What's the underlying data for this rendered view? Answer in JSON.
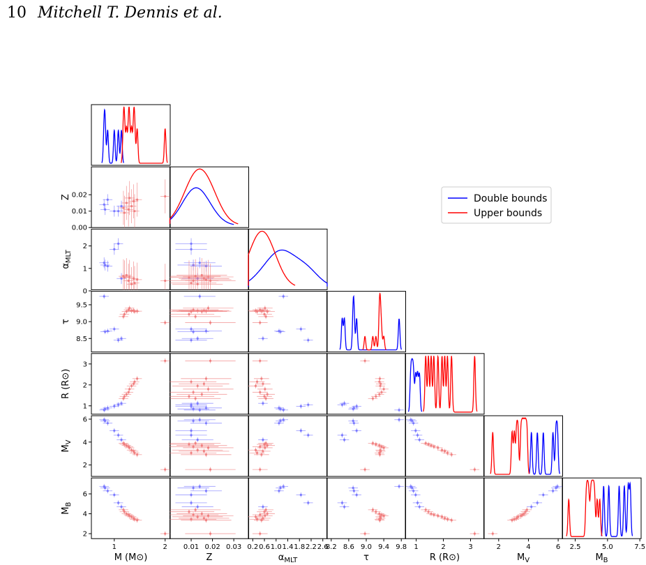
{
  "header": {
    "page_number": "10",
    "authors": "Mitchell T. Dennis et al."
  },
  "colors": {
    "double": "#0000ff",
    "upper": "#ff0000",
    "upper_point": "#f08080",
    "double_point": "#7a7aff"
  },
  "chart_data": {
    "type": "scatter",
    "title": "",
    "variables": [
      {
        "key": "M",
        "label": "M (M⊙)",
        "range": [
          0.55,
          2.1
        ],
        "ticks": [
          1,
          2
        ],
        "tick_labels": [
          "1",
          "2"
        ],
        "ylabel": ""
      },
      {
        "key": "Z",
        "label": "Z",
        "range": [
          0.0,
          0.037
        ],
        "ticks": [
          0.01,
          0.02,
          0.03
        ],
        "tick_labels": [
          "0.01",
          "0.02",
          "0.03"
        ],
        "yticks": [
          0.0,
          0.01,
          0.02
        ],
        "ytick_labels": [
          "0.00",
          "0.01",
          "0.02"
        ],
        "ylabel": "Z"
      },
      {
        "key": "alpha",
        "label": "α_MLT",
        "range": [
          0.05,
          2.75
        ],
        "ticks": [
          0.2,
          0.6,
          1.0,
          1.4,
          1.8,
          2.2,
          2.6
        ],
        "tick_labels": [
          "0.2",
          "0.6",
          "1.0",
          "1.4",
          "1.8",
          "2.2",
          "2.6"
        ],
        "yticks": [
          0,
          1,
          2
        ],
        "ytick_labels": [
          "0",
          "1",
          "2"
        ],
        "ylabel": "α_MLT"
      },
      {
        "key": "tau",
        "label": "τ",
        "range": [
          8.1,
          9.9
        ],
        "ticks": [
          8.2,
          8.6,
          9.0,
          9.4,
          9.8
        ],
        "tick_labels": [
          "8.2",
          "8.6",
          "9.0",
          "9.4",
          "9.8"
        ],
        "yticks": [
          8.5,
          9.0,
          9.5
        ],
        "ytick_labels": [
          "8.5",
          "9.0",
          "9.5"
        ],
        "ylabel": "τ"
      },
      {
        "key": "R",
        "label": "R (R⊙)",
        "range": [
          0.6,
          3.5
        ],
        "ticks": [
          1,
          2,
          3
        ],
        "tick_labels": [
          "1",
          "2",
          "3"
        ],
        "yticks": [
          1,
          2,
          3
        ],
        "ytick_labels": [
          "1",
          "2",
          "3"
        ],
        "ylabel": "R (R⊙)"
      },
      {
        "key": "MV",
        "label": "M_V",
        "range": [
          1.0,
          6.3
        ],
        "ticks": [
          2,
          4,
          6
        ],
        "tick_labels": [
          "2",
          "4",
          "6"
        ],
        "yticks": [
          2,
          4,
          6
        ],
        "ytick_labels": [
          "2",
          "4",
          "6"
        ],
        "ylabel": "M_V"
      },
      {
        "key": "MB",
        "label": "M_B",
        "range": [
          1.5,
          7.6
        ],
        "ticks": [
          2.5,
          5.0,
          7.5
        ],
        "tick_labels": [
          "2.5",
          "5.0",
          "7.5"
        ],
        "yticks": [
          2,
          4,
          6
        ],
        "ytick_labels": [
          "2",
          "4",
          "6"
        ],
        "ylabel": "M_B"
      }
    ],
    "legend": {
      "position": "right",
      "entries": [
        "Double bounds",
        "Upper bounds"
      ]
    },
    "series": [
      {
        "name": "Double bounds",
        "color": "#0000ff",
        "points": [
          {
            "M": 0.8,
            "Z": 0.014,
            "alpha": 1.25,
            "tau": 9.75,
            "R": 0.8,
            "MV": 5.95,
            "MB": 6.75
          },
          {
            "M": 0.82,
            "Z": 0.011,
            "alpha": 1.15,
            "tau": 8.7,
            "R": 0.85,
            "MV": 5.85,
            "MB": 6.6
          },
          {
            "M": 0.87,
            "Z": 0.017,
            "alpha": 1.1,
            "tau": 8.72,
            "R": 0.9,
            "MV": 5.65,
            "MB": 6.3
          },
          {
            "M": 1.0,
            "Z": 0.01,
            "alpha": 1.85,
            "tau": 8.78,
            "R": 0.98,
            "MV": 5.0,
            "MB": 5.9
          },
          {
            "M": 1.08,
            "Z": 0.01,
            "alpha": 2.1,
            "tau": 8.45,
            "R": 1.05,
            "MV": 4.6,
            "MB": 5.1
          },
          {
            "M": 1.14,
            "Z": 0.013,
            "alpha": 0.55,
            "tau": 8.5,
            "R": 1.12,
            "MV": 4.2,
            "MB": 4.7
          }
        ]
      },
      {
        "name": "Upper bounds",
        "color": "#ff0000",
        "points": [
          {
            "M": 1.18,
            "Z": 0.012,
            "alpha": 0.65,
            "tau": 9.15,
            "R": 1.35,
            "MV": 3.9,
            "MB": 4.4
          },
          {
            "M": 1.2,
            "Z": 0.009,
            "alpha": 0.6,
            "tau": 9.22,
            "R": 1.45,
            "MV": 3.8,
            "MB": 4.2
          },
          {
            "M": 1.24,
            "Z": 0.015,
            "alpha": 0.7,
            "tau": 9.3,
            "R": 1.55,
            "MV": 3.7,
            "MB": 4.0
          },
          {
            "M": 1.28,
            "Z": 0.011,
            "alpha": 0.45,
            "tau": 9.35,
            "R": 1.65,
            "MV": 3.6,
            "MB": 3.9
          },
          {
            "M": 1.3,
            "Z": 0.018,
            "alpha": 0.62,
            "tau": 9.4,
            "R": 1.8,
            "MV": 3.5,
            "MB": 3.8
          },
          {
            "M": 1.34,
            "Z": 0.013,
            "alpha": 0.3,
            "tau": 9.32,
            "R": 1.95,
            "MV": 3.3,
            "MB": 3.7
          },
          {
            "M": 1.38,
            "Z": 0.016,
            "alpha": 0.55,
            "tau": 9.33,
            "R": 2.05,
            "MV": 3.2,
            "MB": 3.55
          },
          {
            "M": 1.4,
            "Z": 0.01,
            "alpha": 0.35,
            "tau": 9.3,
            "R": 2.15,
            "MV": 3.05,
            "MB": 3.45
          },
          {
            "M": 1.45,
            "Z": 0.017,
            "alpha": 0.5,
            "tau": 9.31,
            "R": 2.3,
            "MV": 2.9,
            "MB": 3.35
          },
          {
            "M": 2.0,
            "Z": 0.019,
            "alpha": 0.45,
            "tau": 8.97,
            "R": 3.15,
            "MV": 1.6,
            "MB": 2.0
          }
        ]
      }
    ]
  }
}
